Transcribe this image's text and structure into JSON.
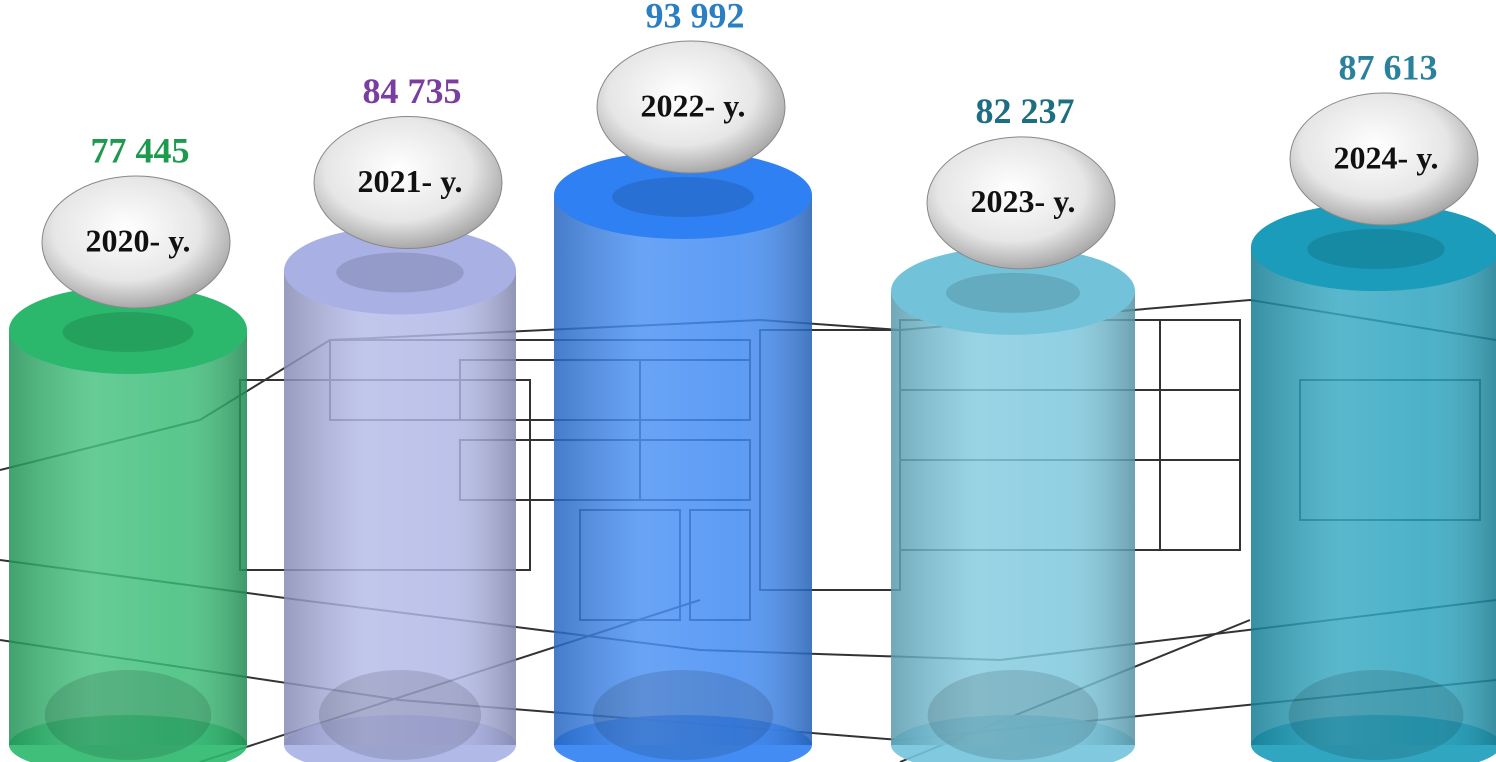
{
  "chart_data": {
    "type": "bar",
    "categories": [
      "2020- y.",
      "2021- y.",
      "2022- y.",
      "2023- y.",
      "2024- y."
    ],
    "values": [
      77445,
      84735,
      93992,
      82237,
      87613
    ],
    "value_labels": [
      "77 445",
      "84 735",
      "93 992",
      "82 237",
      "87 613"
    ],
    "colors": [
      "#2bb86c",
      "#a9b1e4",
      "#2f80f2",
      "#72c3da",
      "#1a9cba"
    ],
    "label_colors": [
      "#1c9a4e",
      "#7a3da0",
      "#2a7fc2",
      "#1d6e82",
      "#2a819c"
    ]
  }
}
